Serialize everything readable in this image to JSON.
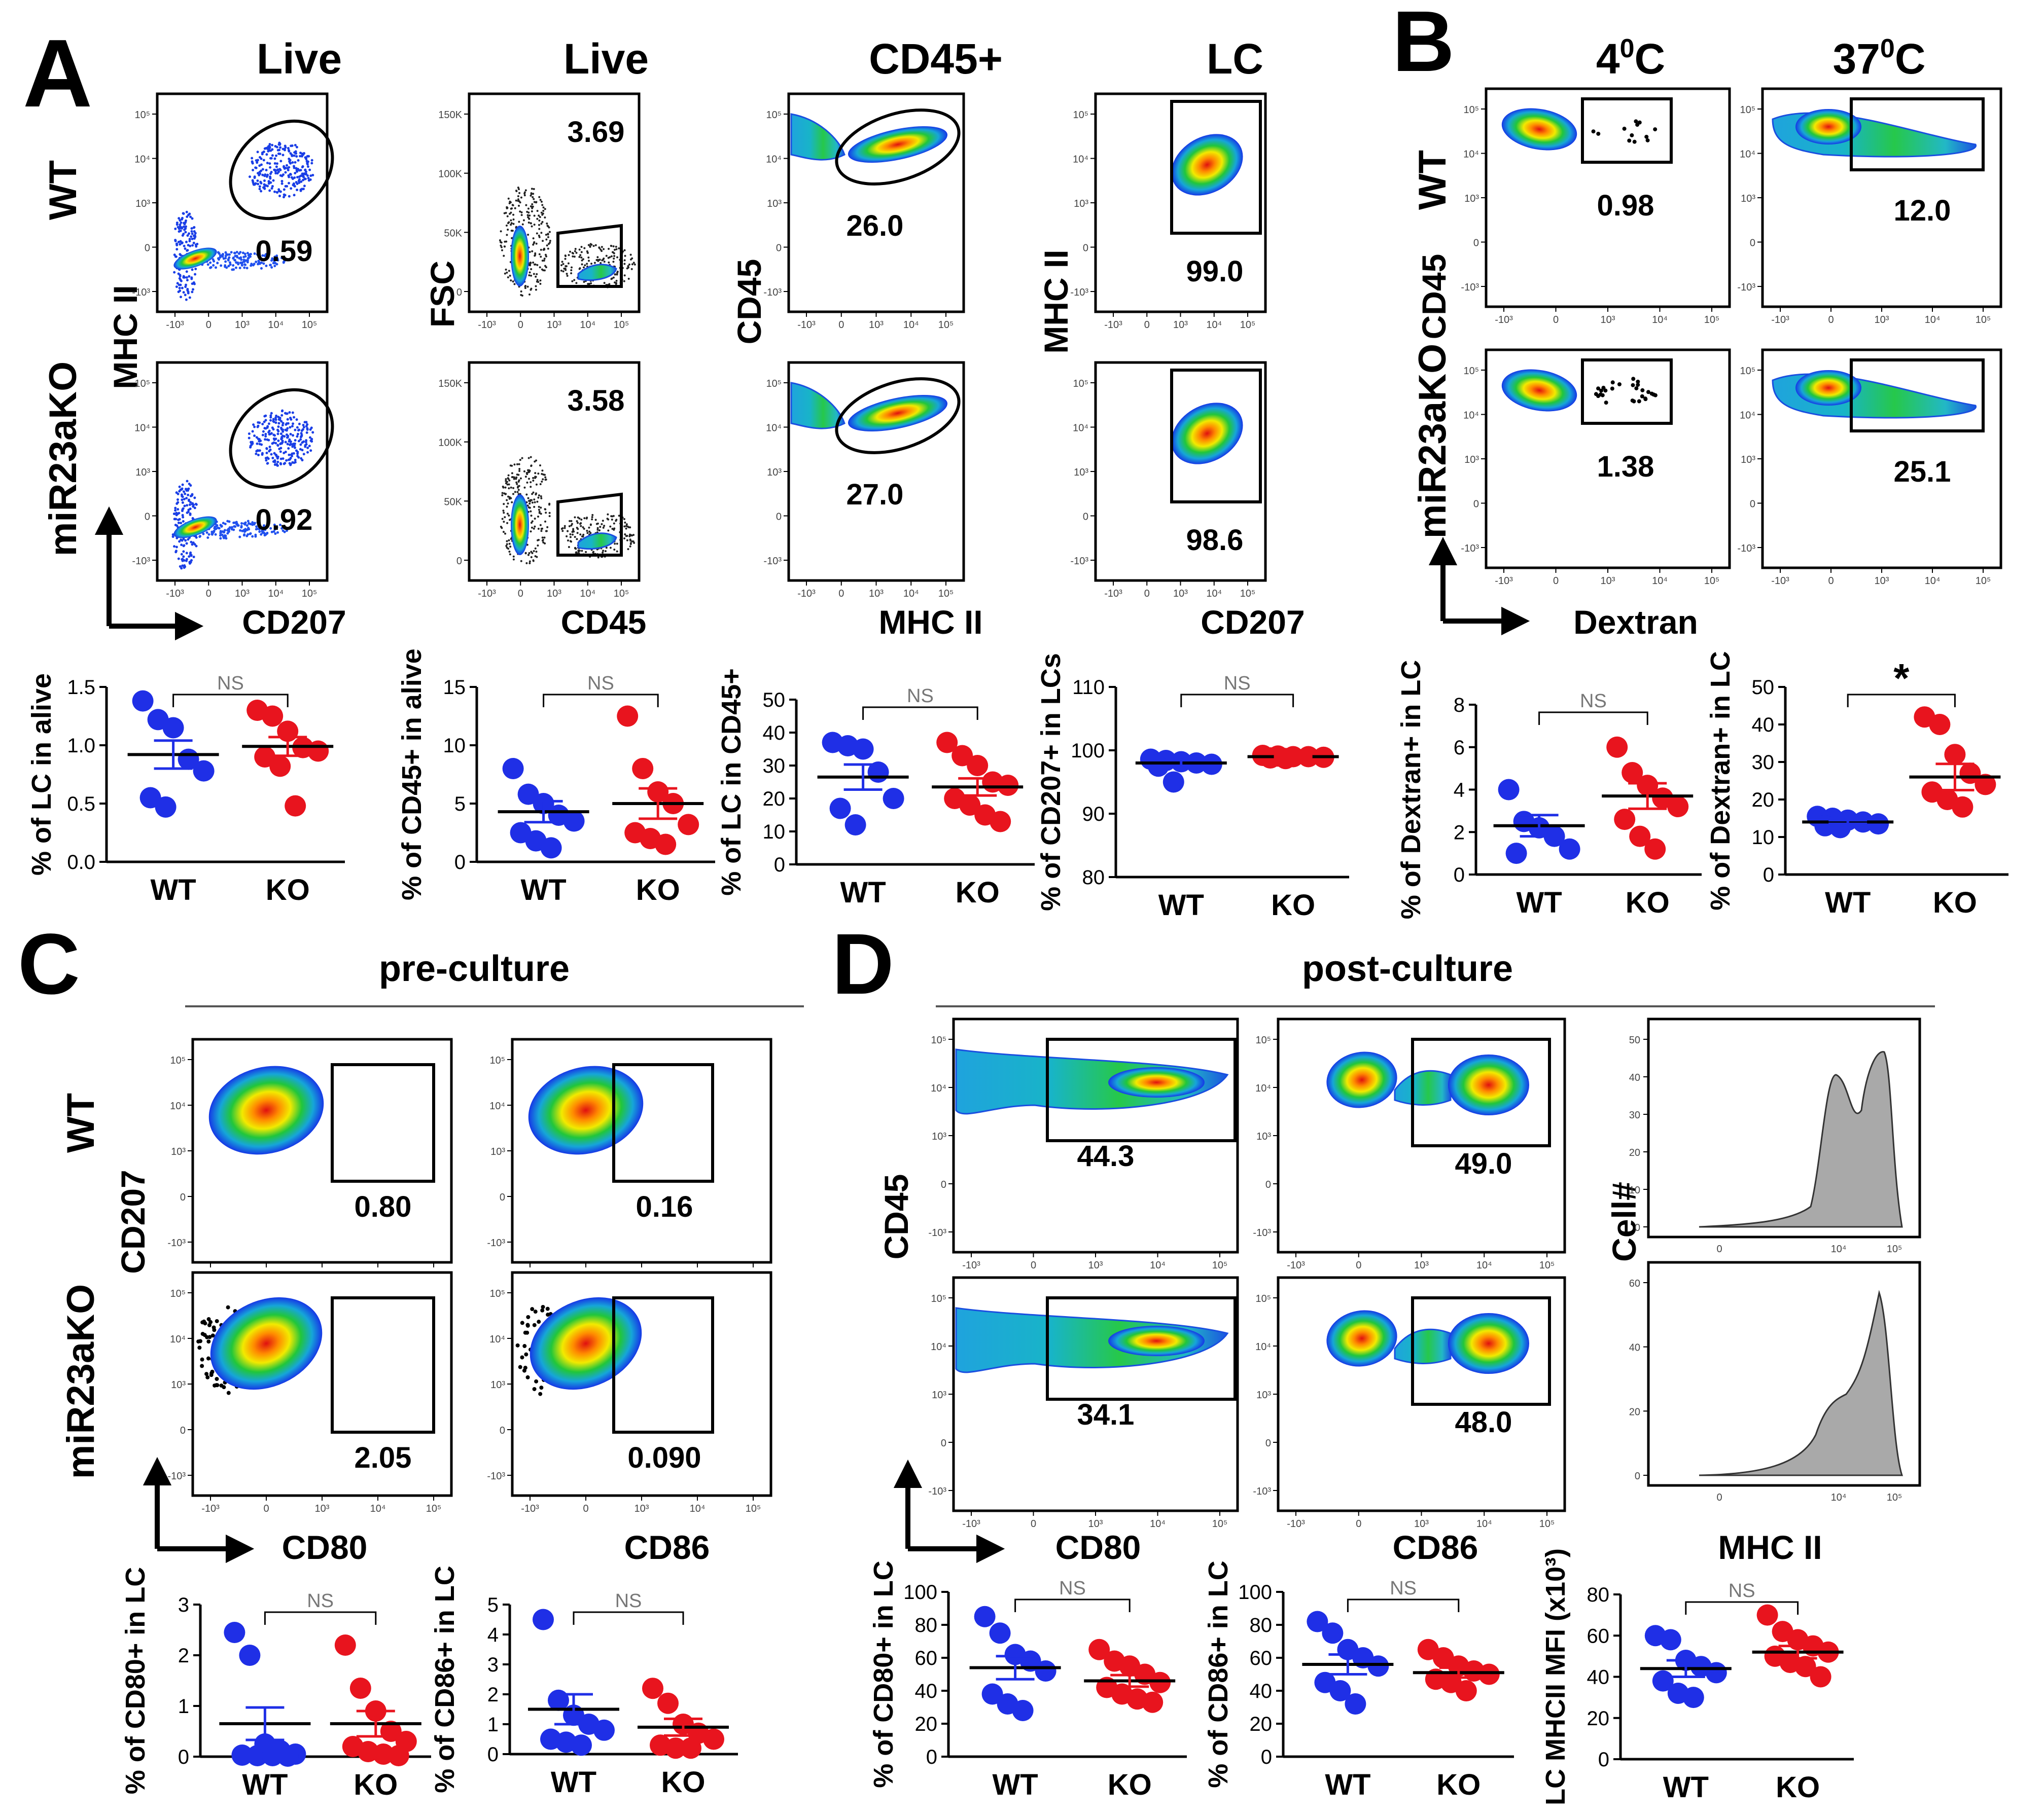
{
  "colors": {
    "wt": "#1f2fe6",
    "ko": "#e8141e",
    "axis": "#000000",
    "gate": "#000000",
    "hist": "#a9a9a9",
    "sig": "#888888"
  },
  "panels": {
    "A": {
      "letter": "A",
      "col_titles": [
        "Live",
        "Live",
        "CD45+",
        "LC"
      ],
      "row_labels": [
        "WT",
        "miR23aKO"
      ],
      "plots": [
        {
          "ylabel": "MHC II",
          "xlabel": "CD207",
          "values": [
            "0.59",
            "0.92"
          ]
        },
        {
          "ylabel": "FSC",
          "xlabel": "CD45",
          "values": [
            "3.69",
            "3.58"
          ]
        },
        {
          "ylabel": "CD45",
          "xlabel": "MHC II",
          "values": [
            "26.0",
            "27.0"
          ]
        },
        {
          "ylabel": "MHC II",
          "xlabel": "CD207",
          "values": [
            "99.0",
            "98.6"
          ]
        }
      ]
    },
    "B": {
      "letter": "B",
      "col_titles": [
        "4",
        "37"
      ],
      "col_title_sup": "0",
      "col_title_suffix": "C",
      "row_labels": [
        "WT",
        "miR23aKO"
      ],
      "ylabel": "CD45",
      "xlabel": "Dextran",
      "values": [
        "0.98",
        "12.0",
        "1.38",
        "25.1"
      ]
    },
    "C": {
      "letter": "C",
      "header": "pre-culture",
      "row_labels": [
        "WT",
        "miR23aKO"
      ],
      "ylabel": "CD207",
      "xlabels": [
        "CD80",
        "CD86"
      ],
      "values": [
        "0.80",
        "0.16",
        "2.05",
        "0.090"
      ]
    },
    "D": {
      "letter": "D",
      "header": "post-culture",
      "ylabel": "CD45",
      "xlabels": [
        "CD80",
        "CD86",
        "MHC II"
      ],
      "hist_ylabel": "Cell#",
      "values": [
        "44.3",
        "49.0",
        "34.1",
        "48.0"
      ]
    }
  },
  "flow_ticks": {
    "x": [
      "-10³",
      "0",
      "10³",
      "10⁴",
      "10⁵"
    ],
    "y": [
      "10⁵",
      "10⁴",
      "10³",
      "0",
      "-10³"
    ],
    "fsc": [
      "150K",
      "100K",
      "50K",
      "0"
    ],
    "hist_y1": [
      "50",
      "40",
      "30",
      "20",
      "10",
      "0"
    ],
    "hist_y2": [
      "60",
      "40",
      "20",
      "0"
    ]
  },
  "chart_data": [
    {
      "type": "scatter",
      "panel": "A",
      "title": "",
      "ylabel": "% of LC in alive",
      "ylim": [
        0,
        1.5
      ],
      "yticks": [
        "0.0",
        "0.5",
        "1.0",
        "1.5"
      ],
      "categories": [
        "WT",
        "KO"
      ],
      "significance": "NS",
      "series": [
        {
          "name": "WT",
          "values": [
            1.38,
            1.22,
            1.15,
            0.88,
            0.78,
            0.55,
            0.47
          ],
          "mean": 0.92,
          "sem": 0.12
        },
        {
          "name": "KO",
          "values": [
            1.3,
            1.25,
            1.12,
            0.98,
            0.95,
            0.9,
            0.82,
            0.48
          ],
          "mean": 0.99,
          "sem": 0.08
        }
      ]
    },
    {
      "type": "scatter",
      "panel": "A",
      "title": "",
      "ylabel": "% of CD45+ in alive",
      "ylim": [
        0,
        15
      ],
      "yticks": [
        "0",
        "5",
        "10",
        "15"
      ],
      "categories": [
        "WT",
        "KO"
      ],
      "significance": "NS",
      "series": [
        {
          "name": "WT",
          "values": [
            8.0,
            5.8,
            5.0,
            4.0,
            3.5,
            2.5,
            1.8,
            1.2
          ],
          "mean": 4.3,
          "sem": 0.9
        },
        {
          "name": "KO",
          "values": [
            12.5,
            8.0,
            6.0,
            5.0,
            3.2,
            2.5,
            2.0,
            1.5
          ],
          "mean": 5.0,
          "sem": 1.3
        }
      ]
    },
    {
      "type": "scatter",
      "panel": "A",
      "title": "",
      "ylabel": "% of LC in CD45+",
      "ylim": [
        0,
        50
      ],
      "yticks": [
        "0",
        "10",
        "20",
        "30",
        "40",
        "50"
      ],
      "categories": [
        "WT",
        "KO"
      ],
      "significance": "NS",
      "series": [
        {
          "name": "WT",
          "values": [
            37,
            36,
            35,
            28,
            20,
            17,
            12
          ],
          "mean": 26.5,
          "sem": 3.8
        },
        {
          "name": "KO",
          "values": [
            37,
            33,
            30,
            25,
            24,
            20,
            18,
            15,
            13
          ],
          "mean": 23.5,
          "sem": 2.6
        }
      ]
    },
    {
      "type": "scatter",
      "panel": "A",
      "title": "",
      "ylabel": "% of CD207+ in LCs",
      "ylim": [
        80,
        110
      ],
      "yticks": [
        "80",
        "90",
        "100",
        "110"
      ],
      "categories": [
        "WT",
        "KO"
      ],
      "significance": "NS",
      "series": [
        {
          "name": "WT",
          "values": [
            98.6,
            98.4,
            98.2,
            98.0,
            97.8,
            97.5,
            95.0
          ],
          "mean": 98.0,
          "sem": 0.5
        },
        {
          "name": "KO",
          "values": [
            99.2,
            99.1,
            99.0,
            99.0,
            98.9,
            98.8,
            98.7
          ],
          "mean": 99.0,
          "sem": 0.1
        }
      ]
    },
    {
      "type": "scatter",
      "panel": "B",
      "title": "",
      "ylabel": "% of Dextran+ in LC",
      "ylim": [
        0,
        8
      ],
      "yticks": [
        "0",
        "2",
        "4",
        "6",
        "8"
      ],
      "categories": [
        "WT",
        "KO"
      ],
      "significance": "NS",
      "series": [
        {
          "name": "WT",
          "values": [
            4.0,
            2.5,
            2.2,
            1.8,
            1.2,
            1.0
          ],
          "mean": 2.3,
          "sem": 0.5
        },
        {
          "name": "KO",
          "values": [
            6.0,
            4.8,
            4.2,
            3.6,
            3.2,
            2.6,
            1.8,
            1.2
          ],
          "mean": 3.7,
          "sem": 0.6
        }
      ]
    },
    {
      "type": "scatter",
      "panel": "B",
      "title": "",
      "ylabel": "% of Dextran+ in LC",
      "ylim": [
        0,
        50
      ],
      "yticks": [
        "0",
        "10",
        "20",
        "30",
        "40",
        "50"
      ],
      "categories": [
        "WT",
        "KO"
      ],
      "significance": "*",
      "series": [
        {
          "name": "WT",
          "values": [
            15.5,
            15.0,
            14.5,
            14.0,
            13.5,
            13.0,
            12.5
          ],
          "mean": 14.0,
          "sem": 0.5
        },
        {
          "name": "KO",
          "values": [
            42,
            40,
            32,
            27,
            24,
            22,
            20,
            18
          ],
          "mean": 26.0,
          "sem": 3.5
        }
      ]
    },
    {
      "type": "scatter",
      "panel": "C",
      "title": "CD80",
      "ylabel": "% of CD80+ in LC",
      "ylim": [
        0,
        3
      ],
      "yticks": [
        "0",
        "1",
        "2",
        "3"
      ],
      "categories": [
        "WT",
        "KO"
      ],
      "significance": "NS",
      "series": [
        {
          "name": "WT",
          "values": [
            2.45,
            2.0,
            0.25,
            0.12,
            0.05,
            0.03,
            0.02,
            0.02,
            0.01
          ],
          "mean": 0.65,
          "sem": 0.32
        },
        {
          "name": "KO",
          "values": [
            2.2,
            1.35,
            0.9,
            0.5,
            0.3,
            0.2,
            0.1,
            0.05,
            0.02
          ],
          "mean": 0.65,
          "sem": 0.25
        }
      ]
    },
    {
      "type": "scatter",
      "panel": "C",
      "title": "CD86",
      "ylabel": "% of CD86+ in LC",
      "ylim": [
        0,
        5
      ],
      "yticks": [
        "0",
        "1",
        "2",
        "3",
        "4",
        "5"
      ],
      "categories": [
        "WT",
        "KO"
      ],
      "significance": "NS",
      "series": [
        {
          "name": "WT",
          "values": [
            4.5,
            1.8,
            1.3,
            1.0,
            0.8,
            0.5,
            0.4,
            0.3
          ],
          "mean": 1.5,
          "sem": 0.5
        },
        {
          "name": "KO",
          "values": [
            2.2,
            1.7,
            1.0,
            0.7,
            0.5,
            0.3,
            0.2,
            0.2
          ],
          "mean": 0.9,
          "sem": 0.28
        }
      ]
    },
    {
      "type": "scatter",
      "panel": "D",
      "title": "CD80",
      "ylabel": "% of CD80+ in LC",
      "ylim": [
        0,
        100
      ],
      "yticks": [
        "0",
        "20",
        "40",
        "60",
        "80",
        "100"
      ],
      "categories": [
        "WT",
        "KO"
      ],
      "significance": "NS",
      "series": [
        {
          "name": "WT",
          "values": [
            85,
            75,
            62,
            58,
            52,
            38,
            32,
            28
          ],
          "mean": 54,
          "sem": 7
        },
        {
          "name": "KO",
          "values": [
            65,
            58,
            55,
            50,
            45,
            42,
            38,
            35,
            33
          ],
          "mean": 46,
          "sem": 3.5
        }
      ]
    },
    {
      "type": "scatter",
      "panel": "D",
      "title": "CD86",
      "ylabel": "% of CD86+ in LC",
      "ylim": [
        0,
        100
      ],
      "yticks": [
        "0",
        "20",
        "40",
        "60",
        "80",
        "100"
      ],
      "categories": [
        "WT",
        "KO"
      ],
      "significance": "NS",
      "series": [
        {
          "name": "WT",
          "values": [
            82,
            75,
            65,
            60,
            55,
            45,
            40,
            32
          ],
          "mean": 56,
          "sem": 6
        },
        {
          "name": "KO",
          "values": [
            65,
            60,
            55,
            52,
            50,
            47,
            45,
            40
          ],
          "mean": 51,
          "sem": 3
        }
      ]
    },
    {
      "type": "scatter",
      "panel": "D",
      "title": "MHC II",
      "ylabel": "LC MHCII MFI (x10³)",
      "ylim": [
        0,
        80
      ],
      "yticks": [
        "0",
        "20",
        "40",
        "60",
        "80"
      ],
      "categories": [
        "WT",
        "KO"
      ],
      "significance": "NS",
      "series": [
        {
          "name": "WT",
          "values": [
            60,
            58,
            48,
            45,
            42,
            38,
            32,
            30
          ],
          "mean": 44,
          "sem": 4
        },
        {
          "name": "KO",
          "values": [
            70,
            62,
            58,
            55,
            52,
            50,
            47,
            45,
            40
          ],
          "mean": 52,
          "sem": 3
        }
      ]
    }
  ]
}
